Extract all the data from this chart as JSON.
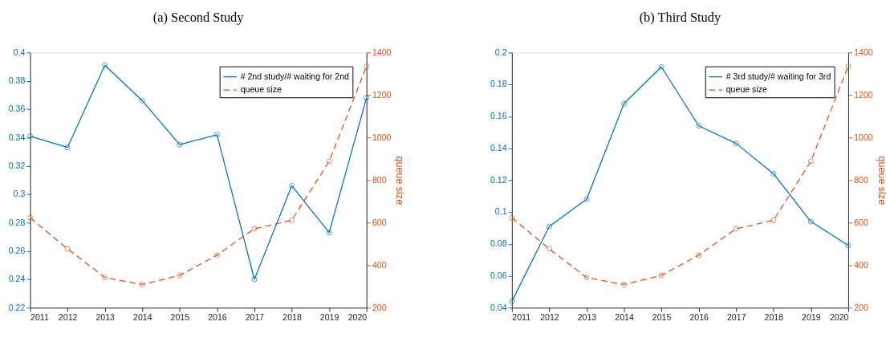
{
  "chart_data": [
    {
      "type": "line",
      "title": "(a) Second Study",
      "y2label": "queue size",
      "x": [
        2011,
        2012,
        2013,
        2014,
        2015,
        2016,
        2017,
        2018,
        2019,
        2020
      ],
      "xlim": [
        2011,
        2020
      ],
      "xticks": [
        2011,
        2012,
        2013,
        2014,
        2015,
        2016,
        2017,
        2018,
        2019,
        2020
      ],
      "ylim": [
        0.22,
        0.4
      ],
      "yticks": [
        0.22,
        0.24,
        0.26,
        0.28,
        0.3,
        0.32,
        0.34,
        0.36,
        0.38,
        0.4
      ],
      "y2lim": [
        200,
        1400
      ],
      "y2ticks": [
        200,
        400,
        600,
        800,
        1000,
        1200,
        1400
      ],
      "legend": "top right",
      "marker": "circle",
      "grid": false,
      "series": [
        {
          "name": "# 2nd study/# waiting for 2nd",
          "color": "#0072bd",
          "line_style": "solid",
          "values": [
            0.341,
            0.333,
            0.391,
            0.366,
            0.335,
            0.342,
            0.24,
            0.306,
            0.273,
            0.368
          ]
        },
        {
          "name": "queue size",
          "color": "#d95319",
          "line_style": "dashed",
          "axis": "y2",
          "values": [
            623,
            477,
            342,
            309,
            352,
            447,
            571,
            611,
            888,
            1335
          ]
        }
      ]
    },
    {
      "type": "line",
      "title": "(b) Third Study",
      "y2label": "queue size",
      "x": [
        2011,
        2012,
        2013,
        2014,
        2015,
        2016,
        2017,
        2018,
        2019,
        2020
      ],
      "xlim": [
        2011,
        2020
      ],
      "xticks": [
        2011,
        2012,
        2013,
        2014,
        2015,
        2016,
        2017,
        2018,
        2019,
        2020
      ],
      "ylim": [
        0.04,
        0.2
      ],
      "yticks": [
        0.04,
        0.06,
        0.08,
        0.1,
        0.12,
        0.14,
        0.16,
        0.18,
        0.2
      ],
      "y2lim": [
        200,
        1400
      ],
      "y2ticks": [
        200,
        400,
        600,
        800,
        1000,
        1200,
        1400
      ],
      "legend": "top right",
      "marker": "circle",
      "grid": false,
      "series": [
        {
          "name": "# 3rd study/# waiting for 3rd",
          "color": "#0072bd",
          "line_style": "solid",
          "values": [
            0.044,
            0.091,
            0.108,
            0.168,
            0.191,
            0.154,
            0.143,
            0.124,
            0.094,
            0.079
          ]
        },
        {
          "name": "queue size",
          "color": "#d95319",
          "line_style": "dashed",
          "axis": "y2",
          "values": [
            623,
            477,
            342,
            309,
            352,
            447,
            571,
            611,
            888,
            1335
          ]
        }
      ]
    }
  ]
}
